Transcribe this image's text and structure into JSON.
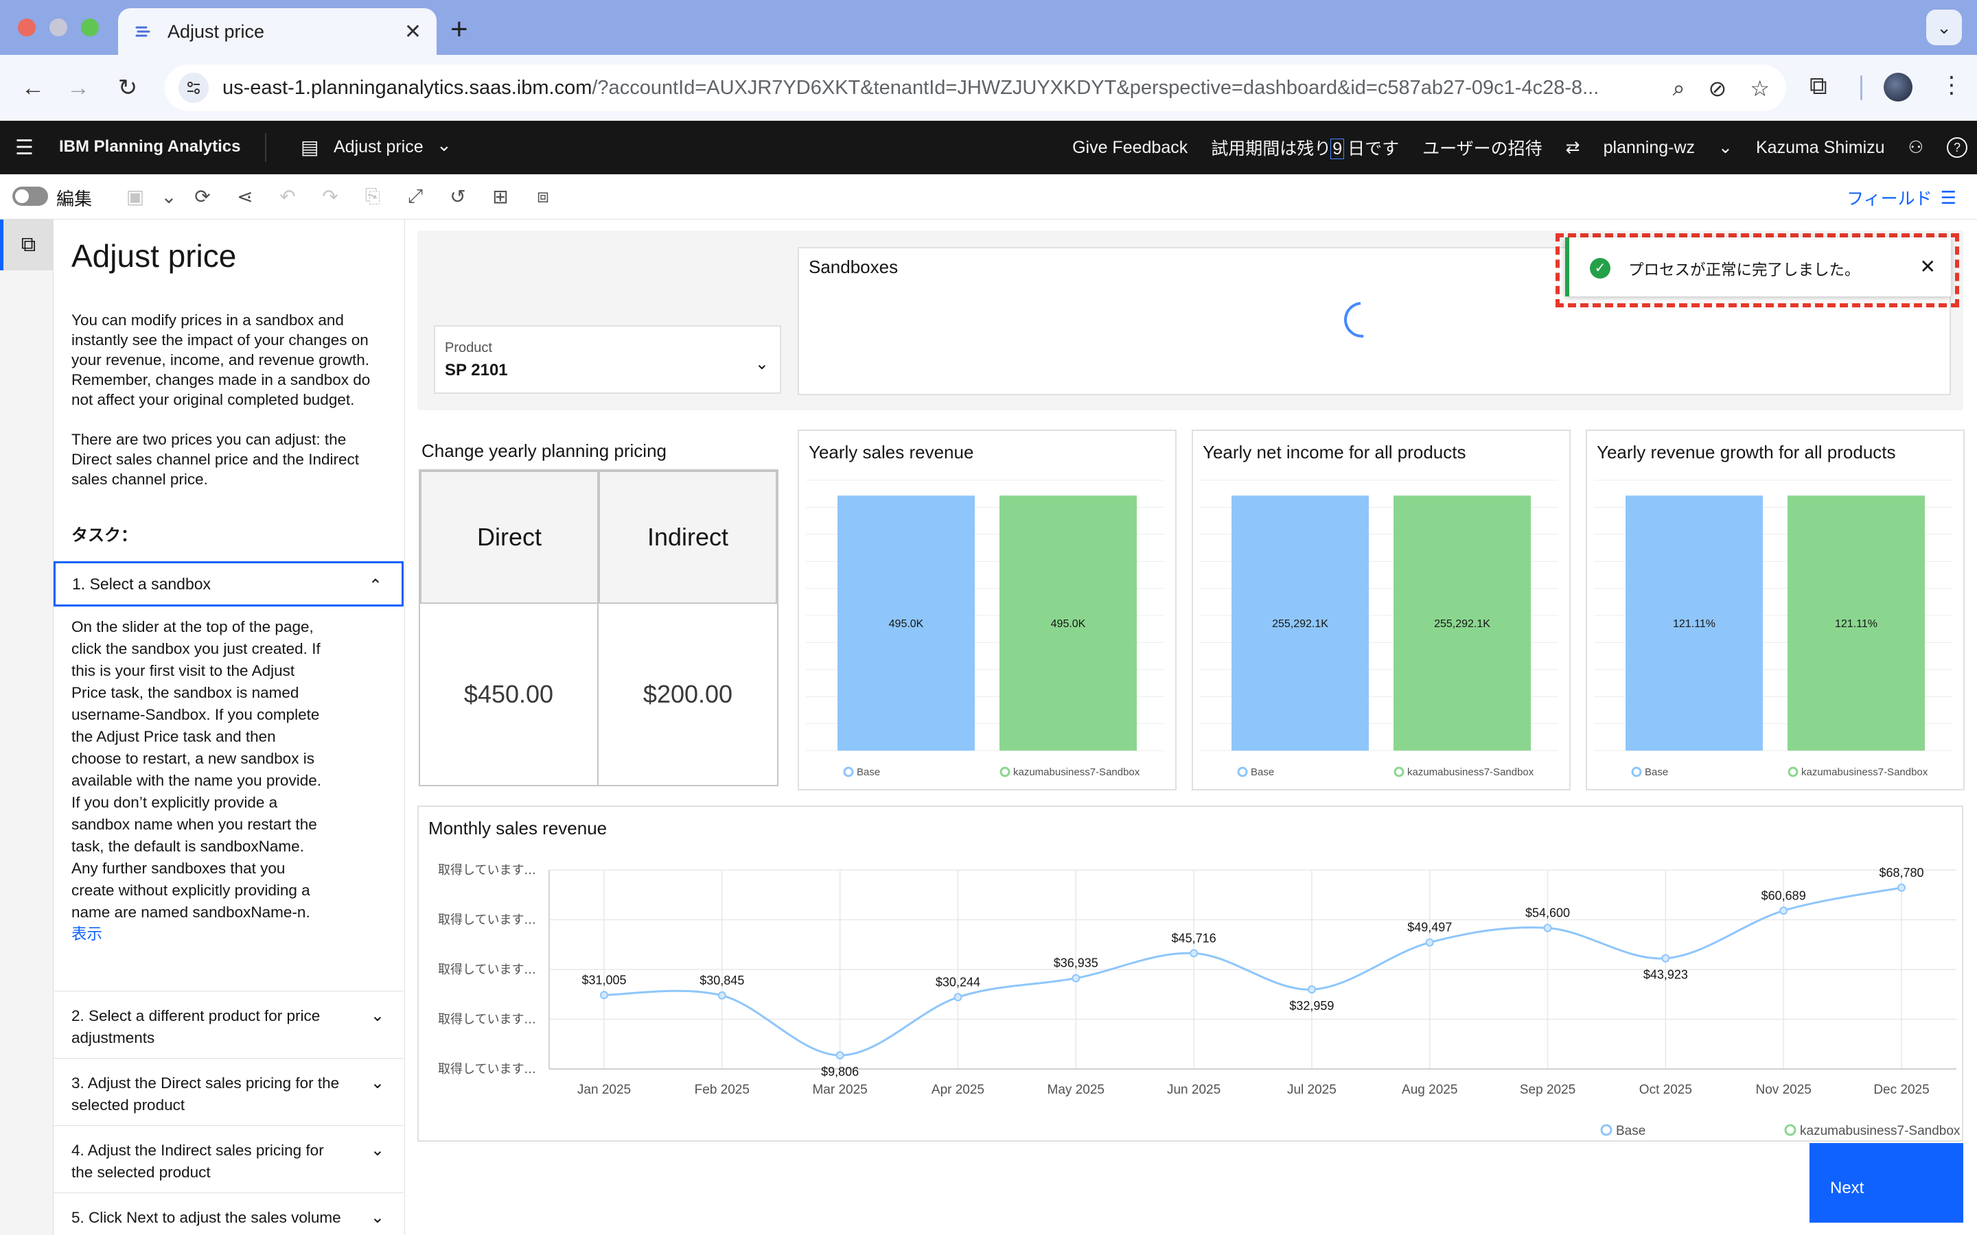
{
  "browser": {
    "tab_title": "Adjust price",
    "url_host": "us-east-1.planninganalytics.saas.ibm.com",
    "url_rest": "/?accountId=AUXJR7YD6XKT&tenantId=JHWZJUYXKDYT&perspective=dashboard&id=c587ab27-09c1-4c28-8..."
  },
  "app_header": {
    "brand": "IBM Planning Analytics",
    "dashboard_name": "Adjust price",
    "give_feedback": "Give Feedback",
    "trial_prefix": "試用期間は残り",
    "trial_days": "9",
    "trial_suffix": "日です",
    "invite": "ユーザーの招待",
    "tenant": "planning-wz",
    "user": "Kazuma Shimizu"
  },
  "toolbar": {
    "edit_label": "編集",
    "field_label": "フィールド"
  },
  "panel": {
    "title": "Adjust price",
    "intro": "You can modify prices in a sandbox and instantly see the impact of your changes on your revenue, income, and revenue growth. Remember, changes made in a sandbox do not affect your original completed budget.",
    "intro2": "There are two prices you can adjust: the Direct sales channel price and the Indirect sales channel price.",
    "task_label": "タスク：",
    "open_step": "1. Select a sandbox",
    "open_step_body": "On the slider at the top of the page, click the sandbox you just created. If this is your first visit to the Adjust Price task, the sandbox is named username-Sandbox. If you complete the Adjust Price task and then choose to restart, a new sandbox is available with the name you provide. If you don’t explicitly provide a sandbox name when you restart the task, the default is sandboxName. Any further sandboxes that you create without explicitly providing a name are named sandboxName-n.",
    "show_more": "表示",
    "steps": [
      "2. Select a different product for price adjustments",
      "3. Adjust the Direct sales pricing for the selected product",
      "4. Adjust the Indirect sales pricing for the selected product",
      "5. Click Next to adjust the sales volume"
    ]
  },
  "product": {
    "label": "Product",
    "value": "SP 2101"
  },
  "sandboxes": {
    "title": "Sandboxes"
  },
  "toast": {
    "message": "プロセスが正常に完了しました。"
  },
  "pricing": {
    "title": "Change yearly planning pricing",
    "direct_label": "Direct",
    "indirect_label": "Indirect",
    "direct_value": "$450.00",
    "indirect_value": "$200.00"
  },
  "colors": {
    "base": "#8ec6fb",
    "sandbox": "#8bd68f",
    "line": "#8ec6fb",
    "accent": "#0f62fe",
    "success": "#24a148"
  },
  "chart_data": [
    {
      "type": "bar",
      "title": "Yearly sales revenue",
      "categories": [
        "Base",
        "kazumabusiness7-Sandbox"
      ],
      "values": [
        495000,
        495000
      ],
      "data_labels": [
        "495.0K",
        "495.0K"
      ]
    },
    {
      "type": "bar",
      "title": "Yearly net income for all products",
      "categories": [
        "Base",
        "kazumabusiness7-Sandbox"
      ],
      "values": [
        255292100,
        255292100
      ],
      "data_labels": [
        "255,292.1K",
        "255,292.1K"
      ]
    },
    {
      "type": "bar",
      "title": "Yearly revenue growth for all products",
      "categories": [
        "Base",
        "kazumabusiness7-Sandbox"
      ],
      "values": [
        121.11,
        121.11
      ],
      "data_labels": [
        "121.11%",
        "121.11%"
      ]
    },
    {
      "type": "line",
      "title": "Monthly sales revenue",
      "x": [
        "Jan 2025",
        "Feb 2025",
        "Mar 2025",
        "Apr 2025",
        "May 2025",
        "Jun 2025",
        "Jul 2025",
        "Aug 2025",
        "Sep 2025",
        "Oct 2025",
        "Nov 2025",
        "Dec 2025"
      ],
      "series": [
        {
          "name": "Base",
          "values": [
            31005,
            30845,
            9806,
            30244,
            36935,
            45716,
            32959,
            49497,
            54600,
            43923,
            60689,
            68780
          ]
        }
      ],
      "data_labels": [
        "$31,005",
        "$30,845",
        "$9,806",
        "$30,244",
        "$36,935",
        "$45,716",
        "$32,959",
        "$49,497",
        "$54,600",
        "$43,923",
        "$60,689",
        "$68,780"
      ],
      "y_tick_labels": [
        "取得しています...",
        "取得しています...",
        "取得しています...",
        "取得しています...",
        "取得しています..."
      ],
      "legend": [
        "Base",
        "kazumabusiness7-Sandbox"
      ],
      "legend_position": "bottom-right",
      "grid": true
    }
  ],
  "next_button": "Next"
}
